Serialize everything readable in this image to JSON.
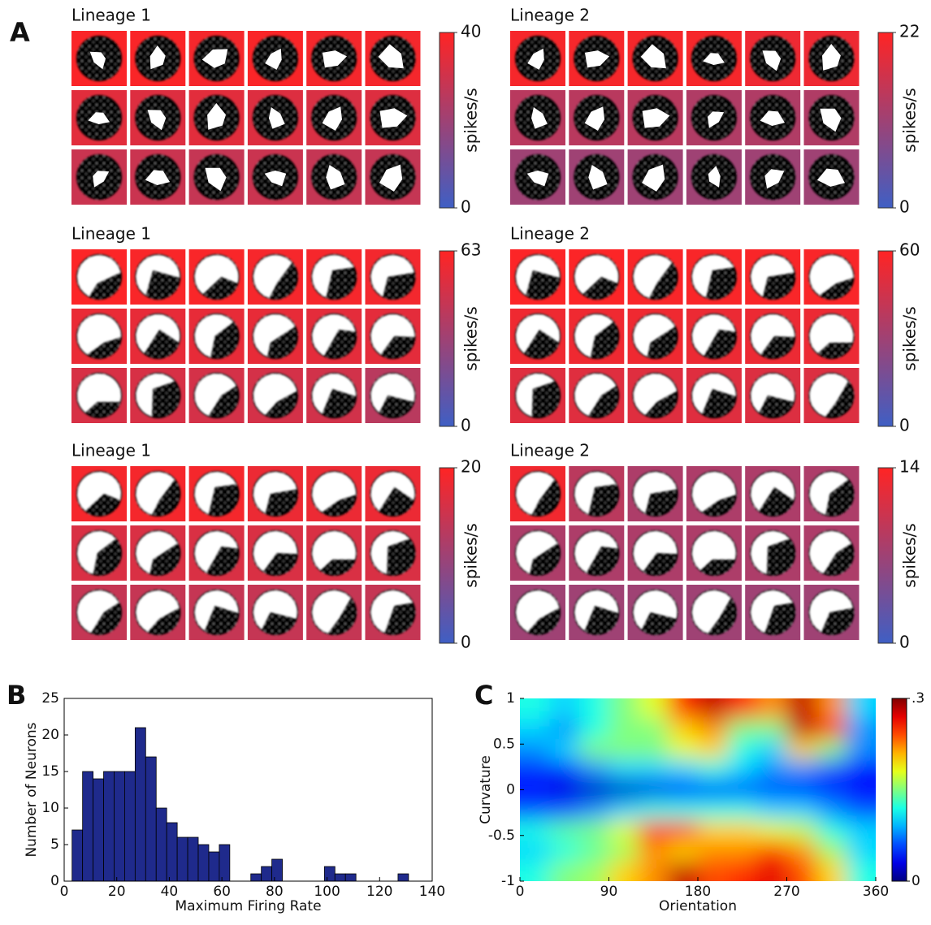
{
  "panel_labels": [
    "A",
    "B",
    "C"
  ],
  "chart_data": [
    {
      "type": "tile-grid",
      "title": "Lineage 1",
      "ylabel": "spikes/s",
      "ylim": [
        0,
        40
      ],
      "yticks": [
        0,
        40
      ],
      "colormap": [
        "#3f5fc4",
        "#ff2424"
      ],
      "values": [
        39,
        39,
        38,
        39,
        38,
        38,
        34,
        33,
        34,
        33,
        32,
        33,
        29,
        29,
        28,
        29,
        28,
        28
      ]
    },
    {
      "type": "tile-grid",
      "title": "Lineage 2",
      "ylabel": "spikes/s",
      "ylim": [
        0,
        22
      ],
      "yticks": [
        0,
        22
      ],
      "colormap": [
        "#3f5fc4",
        "#ff2424"
      ],
      "values": [
        21,
        21,
        21,
        21,
        20,
        20,
        14,
        14,
        14,
        13,
        13,
        13,
        11,
        11,
        11,
        11,
        11,
        11
      ]
    },
    {
      "type": "tile-grid",
      "title": "Lineage 1",
      "ylabel": "spikes/s",
      "ylim": [
        0,
        63
      ],
      "yticks": [
        0,
        63
      ],
      "colormap": [
        "#3f5fc4",
        "#ff2424"
      ],
      "values": [
        62,
        61,
        61,
        60,
        60,
        59,
        56,
        55,
        55,
        55,
        54,
        54,
        50,
        50,
        49,
        49,
        48,
        40
      ]
    },
    {
      "type": "tile-grid",
      "title": "Lineage 2",
      "ylabel": "spikes/s",
      "ylim": [
        0,
        60
      ],
      "yticks": [
        0,
        60
      ],
      "colormap": [
        "#3f5fc4",
        "#ff2424"
      ],
      "values": [
        59,
        59,
        58,
        58,
        58,
        58,
        55,
        55,
        55,
        54,
        54,
        54,
        50,
        50,
        50,
        50,
        49,
        49
      ]
    },
    {
      "type": "tile-grid",
      "title": "Lineage 1",
      "ylabel": "spikes/s",
      "ylim": [
        0,
        20
      ],
      "yticks": [
        0,
        20
      ],
      "colormap": [
        "#3f5fc4",
        "#ff2424"
      ],
      "values": [
        19,
        19,
        19,
        18,
        18,
        18,
        16,
        16,
        16,
        16,
        16,
        16,
        14,
        14,
        14,
        14,
        14,
        14
      ]
    },
    {
      "type": "tile-grid",
      "title": "Lineage 2",
      "ylabel": "spikes/s",
      "ylim": [
        0,
        14
      ],
      "yticks": [
        0,
        14
      ],
      "colormap": [
        "#3f5fc4",
        "#ff2424"
      ],
      "values": [
        13,
        9,
        8,
        8,
        8,
        8,
        8,
        8,
        8,
        8,
        8,
        8,
        7,
        7,
        7,
        7,
        7,
        7
      ]
    },
    {
      "type": "histogram",
      "xlabel": "Maximum Firing Rate",
      "ylabel": "Number of Neurons",
      "color": "#1f2a8c",
      "bins": [
        3,
        7,
        11,
        15,
        19,
        23,
        27,
        31,
        35,
        39,
        43,
        47,
        51,
        55,
        59,
        63,
        67,
        71,
        75,
        79,
        83,
        87,
        91,
        95,
        99,
        103,
        107,
        111,
        115,
        119,
        123,
        127,
        131
      ],
      "values": [
        7,
        15,
        14,
        15,
        15,
        15,
        21,
        17,
        10,
        8,
        6,
        6,
        5,
        4,
        5,
        0,
        0,
        1,
        2,
        3,
        0,
        0,
        0,
        0,
        2,
        1,
        1,
        0,
        0,
        0,
        0,
        1
      ],
      "xlim": [
        0,
        140
      ],
      "xticks": [
        0,
        20,
        40,
        60,
        80,
        100,
        120,
        140
      ],
      "ylim": [
        0,
        25
      ],
      "yticks": [
        0,
        5,
        10,
        15,
        20,
        25
      ]
    },
    {
      "type": "heatmap",
      "xlabel": "Orientation",
      "ylabel": "Curvature",
      "colormap": "jet",
      "xlim": [
        0,
        360
      ],
      "xticks": [
        0,
        90,
        180,
        270,
        360
      ],
      "ylim": [
        -1,
        1
      ],
      "yticks": [
        -1,
        -0.5,
        0,
        0.5,
        1
      ],
      "zlim": [
        0,
        0.3
      ],
      "zticks": [
        0,
        {
          "value": 0.3,
          "label": ".3"
        }
      ],
      "z": [
        [
          0.12,
          0.1,
          0.12,
          0.15,
          0.18,
          0.25,
          0.28,
          0.25,
          0.22,
          0.28,
          0.22,
          0.1
        ],
        [
          0.1,
          0.08,
          0.12,
          0.15,
          0.15,
          0.2,
          0.22,
          0.15,
          0.15,
          0.28,
          0.25,
          0.08
        ],
        [
          0.08,
          0.1,
          0.15,
          0.15,
          0.15,
          0.18,
          0.2,
          0.12,
          0.1,
          0.2,
          0.15,
          0.08
        ],
        [
          0.05,
          0.05,
          0.08,
          0.1,
          0.1,
          0.1,
          0.12,
          0.1,
          0.08,
          0.08,
          0.06,
          0.04
        ],
        [
          0.04,
          0.03,
          0.02,
          0.02,
          0.03,
          0.04,
          0.05,
          0.06,
          0.06,
          0.05,
          0.05,
          0.04
        ],
        [
          0.06,
          0.06,
          0.08,
          0.1,
          0.12,
          0.12,
          0.12,
          0.12,
          0.1,
          0.1,
          0.08,
          0.06
        ],
        [
          0.12,
          0.14,
          0.15,
          0.18,
          0.26,
          0.25,
          0.2,
          0.2,
          0.18,
          0.17,
          0.12,
          0.1
        ],
        [
          0.1,
          0.12,
          0.14,
          0.16,
          0.22,
          0.2,
          0.22,
          0.22,
          0.25,
          0.22,
          0.16,
          0.1
        ],
        [
          0.12,
          0.15,
          0.16,
          0.2,
          0.22,
          0.28,
          0.24,
          0.25,
          0.27,
          0.24,
          0.2,
          0.12
        ]
      ]
    }
  ]
}
